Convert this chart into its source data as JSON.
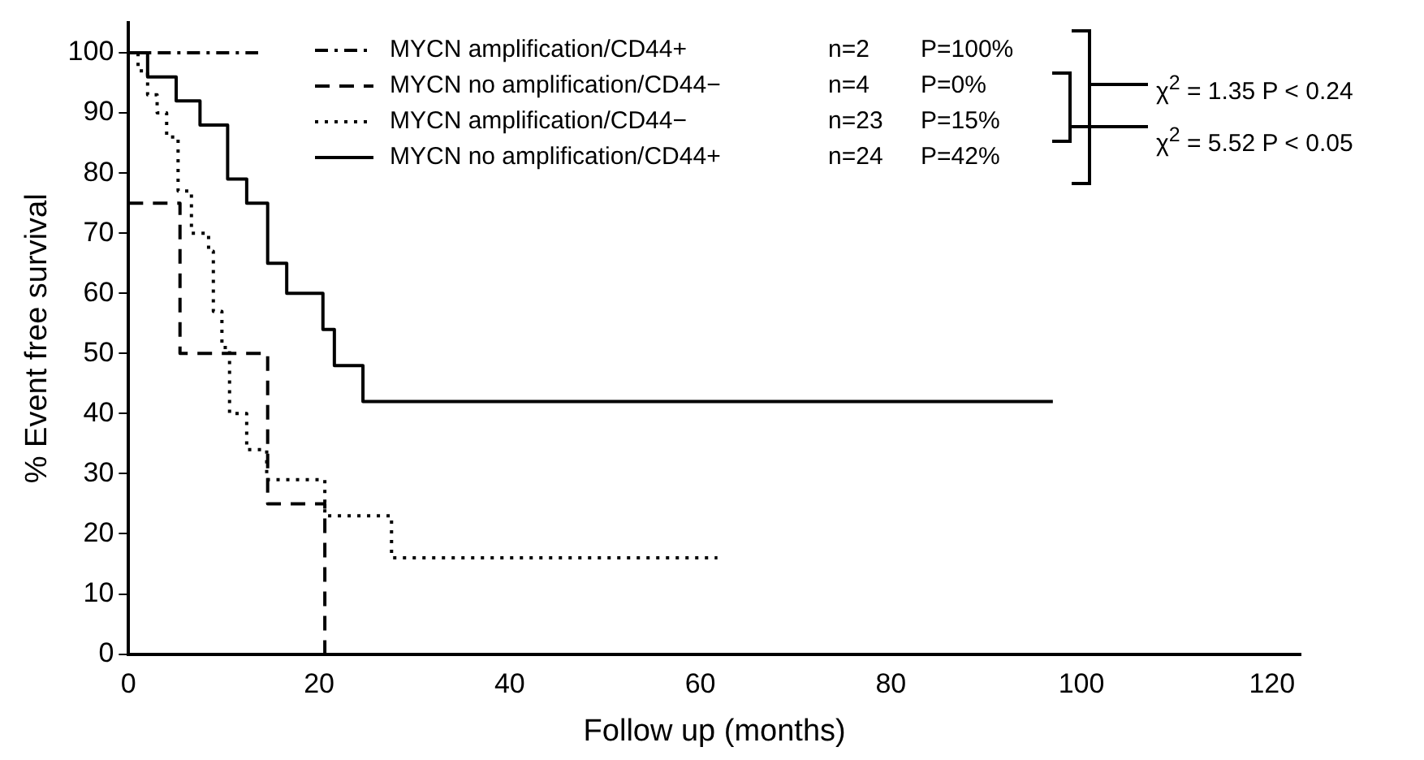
{
  "chart_data": {
    "type": "step",
    "xlabel": "Follow up (months)",
    "ylabel": "% Event free survival",
    "xlim": [
      0,
      123
    ],
    "ylim": [
      0,
      105
    ],
    "xticks": [
      0,
      20,
      40,
      60,
      80,
      100,
      120
    ],
    "yticks": [
      0,
      10,
      20,
      30,
      40,
      50,
      60,
      70,
      80,
      90,
      100
    ],
    "grid": false,
    "legend": "top",
    "marker": "none",
    "series": [
      {
        "name": "MYCN amplification/CD44+",
        "color": "#000000",
        "line_style": "dashdot",
        "x": [
          0,
          13.6
        ],
        "values": [
          100,
          100
        ]
      },
      {
        "name": "MYCN no amplification/CD44−",
        "color": "#000000",
        "line_style": "dashed",
        "x": [
          0,
          5.4,
          14.6,
          20.6
        ],
        "values": [
          75,
          50,
          25,
          0
        ]
      },
      {
        "name": "MYCN amplification/CD44−",
        "color": "#000000",
        "line_style": "dotted",
        "x": [
          0,
          1,
          2,
          3,
          4,
          5.2,
          6.6,
          8.4,
          8.9,
          9.8,
          10.6,
          12.4,
          14.5,
          20.6,
          27.6,
          61.8
        ],
        "values": [
          100,
          97,
          93,
          90,
          86,
          77,
          70,
          67,
          57,
          51,
          40,
          34,
          29,
          23,
          16,
          16
        ]
      },
      {
        "name": "MYCN no amplification/CD44+",
        "color": "#000000",
        "line_style": "solid",
        "x": [
          0,
          2,
          5,
          7.5,
          10.4,
          12.4,
          14.6,
          16.6,
          20.4,
          21.6,
          24.6,
          97
        ],
        "values": [
          100,
          96,
          92,
          88,
          79,
          75,
          65,
          60,
          54,
          48,
          42,
          42
        ]
      }
    ],
    "annotations": [
      "n=2",
      "P=100%",
      "n=4",
      "P=0%",
      "n=23",
      "P=15%",
      "n=24",
      "P=42%",
      "χ$^{2}$ = 1.35 P < 0.24",
      "χ$^{2}$ = 5.52 P < 0.05"
    ]
  }
}
